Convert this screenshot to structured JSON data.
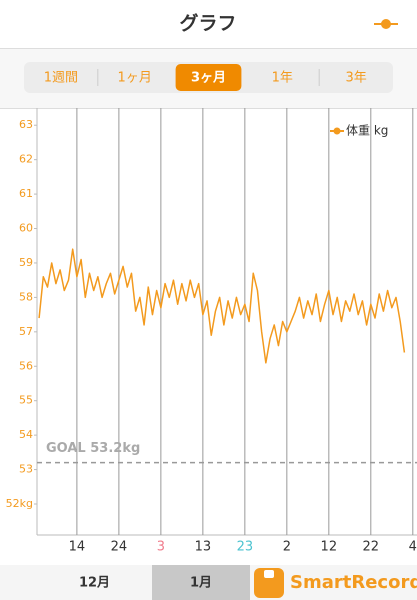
{
  "header": {
    "title": "グラフ"
  },
  "segments": {
    "items": [
      "1週間",
      "1ヶ月",
      "3ヶ月",
      "1年",
      "3年"
    ],
    "selected": 2
  },
  "chart_data": {
    "type": "line",
    "xlim": [
      0.5,
      91
    ],
    "xticks": [
      {
        "value": 10,
        "label": "14"
      },
      {
        "value": 20,
        "label": "24"
      },
      {
        "value": 30,
        "label": "3"
      },
      {
        "value": 40,
        "label": "13"
      },
      {
        "value": 50,
        "label": "23"
      },
      {
        "value": 60,
        "label": "2"
      },
      {
        "value": 70,
        "label": "12"
      },
      {
        "value": 80,
        "label": "22"
      },
      {
        "value": 90,
        "label": "4"
      }
    ],
    "xtick_colors": [
      "#333333",
      "#333333",
      "#f07c8c",
      "#333333",
      "#4cc3d0",
      "#333333",
      "#333333",
      "#333333",
      "#333333"
    ],
    "ylim": [
      51.1,
      63.5
    ],
    "yticks": [
      63,
      62,
      61,
      60,
      59,
      58,
      57,
      56,
      55,
      54,
      53,
      {
        "value": 52,
        "label": "52kg"
      }
    ],
    "grid": true,
    "legend": "upper right",
    "goal": {
      "label": "GOAL 53.2kg",
      "value": 53.2
    },
    "x": [
      1,
      2,
      3,
      4,
      5,
      6,
      7,
      8,
      9,
      10,
      11,
      12,
      13,
      14,
      15,
      16,
      17,
      18,
      19,
      20,
      21,
      22,
      23,
      24,
      25,
      26,
      27,
      28,
      29,
      30,
      31,
      32,
      33,
      34,
      35,
      36,
      37,
      38,
      39,
      40,
      41,
      42,
      43,
      44,
      45,
      46,
      47,
      48,
      49,
      50,
      51,
      52,
      53,
      54,
      55,
      56,
      57,
      58,
      59,
      60,
      61,
      62,
      63,
      64,
      65,
      66,
      67,
      68,
      69,
      70,
      71,
      72,
      73,
      74,
      75,
      76,
      77,
      78,
      79,
      80,
      81,
      82,
      83,
      84,
      85,
      86,
      87,
      88
    ],
    "series": [
      {
        "name": "体重 kg",
        "color": "#f39a1e",
        "values": [
          57.4,
          58.6,
          58.3,
          59.0,
          58.4,
          58.8,
          58.2,
          58.5,
          59.4,
          58.6,
          59.1,
          58.0,
          58.7,
          58.2,
          58.6,
          58.0,
          58.4,
          58.7,
          58.1,
          58.5,
          58.9,
          58.3,
          58.7,
          57.6,
          58.0,
          57.2,
          58.3,
          57.5,
          58.2,
          57.7,
          58.4,
          58.0,
          58.5,
          57.8,
          58.4,
          57.9,
          58.5,
          58.0,
          58.4,
          57.5,
          57.9,
          56.9,
          57.6,
          58.0,
          57.2,
          57.9,
          57.4,
          58.0,
          57.5,
          57.8,
          57.3,
          58.7,
          58.2,
          57.0,
          56.1,
          56.8,
          57.2,
          56.6,
          57.3,
          57.0,
          57.3,
          57.6,
          58.0,
          57.4,
          57.9,
          57.5,
          58.1,
          57.3,
          57.8,
          58.2,
          57.5,
          58.0,
          57.3,
          57.9,
          57.6,
          58.1,
          57.5,
          57.9,
          57.2,
          57.8,
          57.4,
          58.1,
          57.6,
          58.2,
          57.7,
          58.0,
          57.3,
          56.4
        ]
      }
    ]
  },
  "month_tabs": {
    "items": [
      "12月",
      "1月"
    ],
    "selected": 1
  },
  "logo": {
    "text": "SmartRecord"
  }
}
